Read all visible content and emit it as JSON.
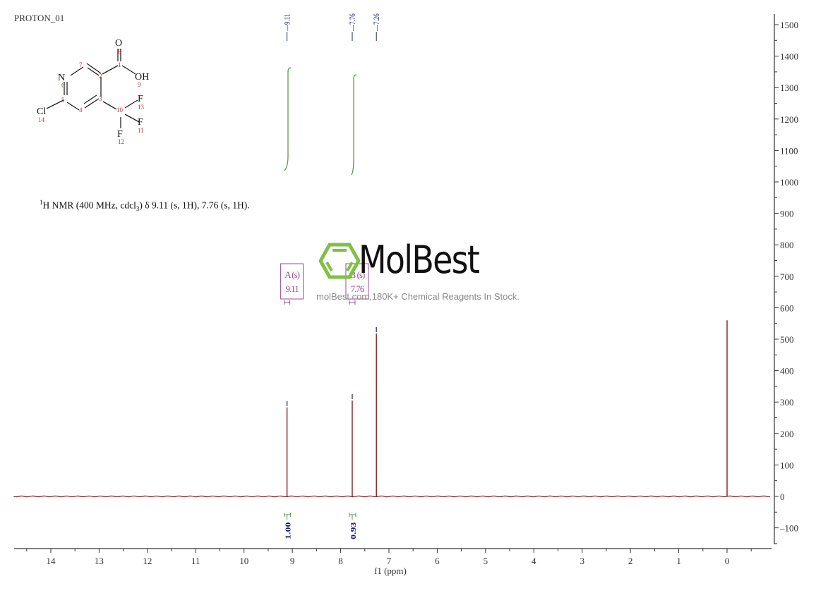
{
  "header": {
    "title": "PROTON_01"
  },
  "molecule": {
    "atoms": [
      {
        "label": "O",
        "num": "8"
      },
      {
        "label": "",
        "num": "1"
      },
      {
        "label": "OH",
        "num": "9"
      },
      {
        "label": "",
        "num": "7"
      },
      {
        "label": "",
        "num": "2"
      },
      {
        "label": "N",
        "num": "6"
      },
      {
        "label": "",
        "num": "5"
      },
      {
        "label": "",
        "num": "3"
      },
      {
        "label": "",
        "num": "4"
      },
      {
        "label": "Cl",
        "num": "14"
      },
      {
        "label": "",
        "num": "10"
      },
      {
        "label": "F",
        "num": "13"
      },
      {
        "label": "F",
        "num": "11"
      },
      {
        "label": "F",
        "num": "12"
      }
    ]
  },
  "nmr_description": {
    "prefix_sup": "1",
    "text_a": "H NMR (400 MHz, cdcl",
    "sub": "3",
    "text_b": ") δ 9.11 (s, 1H), 7.76 (s, 1H)."
  },
  "watermark": {
    "brand": "MolBest",
    "tagline": "molBest.com,180K+ Chemical Reagents In Stock.",
    "logo_color": "#7dc242"
  },
  "colors": {
    "spectrum": "#8b1a1a",
    "integral": "#5a9a4a",
    "peak_label": "#1a237e",
    "multiplet_box": "#9c4a9c",
    "axis": "#333333"
  },
  "chart_data": {
    "type": "line",
    "title": "PROTON_01",
    "xlabel": "f1 (ppm)",
    "ylabel": "",
    "x_reversed": true,
    "xlim": [
      14.9,
      -0.9
    ],
    "ylim": [
      -160,
      1540
    ],
    "grid": false,
    "x_ticks": [
      "14",
      "13",
      "12",
      "11",
      "10",
      "9",
      "8",
      "7",
      "6",
      "5",
      "4",
      "3",
      "2",
      "1",
      "0"
    ],
    "y_ticks": [
      "1500",
      "1400",
      "1300",
      "1200",
      "1100",
      "1000",
      "900",
      "800",
      "700",
      "600",
      "500",
      "400",
      "300",
      "200",
      "100",
      "0",
      "-100"
    ],
    "peaks": [
      {
        "ppm": 9.11,
        "intensity": 283,
        "label": "9.11"
      },
      {
        "ppm": 7.76,
        "intensity": 305,
        "label": "7.76"
      },
      {
        "ppm": 7.26,
        "intensity": 518,
        "label": "7.26"
      },
      {
        "ppm": 0.0,
        "intensity": 560,
        "label": ""
      }
    ],
    "peak_labels_top": [
      "9.11",
      "7.76",
      "7.26"
    ],
    "multiplets": [
      {
        "name": "A (s)",
        "shift": "9.11"
      },
      {
        "name": "B (s)",
        "shift": "7.76"
      }
    ],
    "integrals": [
      {
        "range": [
          9.2,
          9.02
        ],
        "value": "1.00"
      },
      {
        "range": [
          7.84,
          7.7
        ],
        "value": "0.93"
      }
    ]
  }
}
